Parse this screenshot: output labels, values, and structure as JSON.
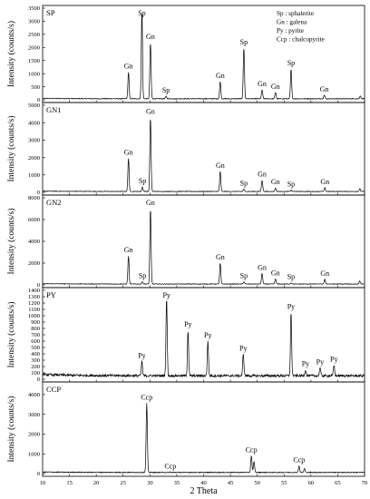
{
  "chart_data": [
    {
      "type": "line",
      "panel": "SP",
      "ylabel": "Intensity (counts/s)",
      "ylim": [
        0,
        3500
      ],
      "yticks": [
        0,
        500,
        1000,
        1500,
        2000,
        2500,
        3000,
        3500
      ],
      "baseline": 40,
      "peaks": [
        {
          "x": 26.0,
          "y": 1050,
          "label": "Gn"
        },
        {
          "x": 28.5,
          "y": 3380,
          "label": "Sp"
        },
        {
          "x": 30.1,
          "y": 2180,
          "label": "Gn"
        },
        {
          "x": 33.0,
          "y": 130,
          "label": "Sp"
        },
        {
          "x": 43.1,
          "y": 700,
          "label": "Gn"
        },
        {
          "x": 47.5,
          "y": 1980,
          "label": "Sp"
        },
        {
          "x": 50.9,
          "y": 380,
          "label": "Gn"
        },
        {
          "x": 53.4,
          "y": 280,
          "label": "Gn"
        },
        {
          "x": 56.3,
          "y": 1170,
          "label": "Sp"
        },
        {
          "x": 62.5,
          "y": 180,
          "label": "Gn"
        },
        {
          "x": 69.2,
          "y": 150,
          "label": ""
        }
      ],
      "legend": [
        "Sp : sphalerite",
        "Gn : galena",
        "Py : pyrite",
        "Ccp : chalcopyrite"
      ]
    },
    {
      "type": "line",
      "panel": "GN1",
      "ylabel": "Intensity (counts/s)",
      "ylim": [
        0,
        5000
      ],
      "yticks": [
        0,
        1000,
        2000,
        3000,
        4000,
        5000
      ],
      "baseline": 50,
      "peaks": [
        {
          "x": 26.0,
          "y": 1950,
          "label": "Gn"
        },
        {
          "x": 28.6,
          "y": 300,
          "label": "Sp"
        },
        {
          "x": 30.1,
          "y": 4300,
          "label": "Gn"
        },
        {
          "x": 43.1,
          "y": 1200,
          "label": "Gn"
        },
        {
          "x": 47.5,
          "y": 180,
          "label": "Sp"
        },
        {
          "x": 50.9,
          "y": 700,
          "label": "Gn"
        },
        {
          "x": 53.4,
          "y": 250,
          "label": "Gn"
        },
        {
          "x": 56.3,
          "y": 120,
          "label": "Sp"
        },
        {
          "x": 62.6,
          "y": 260,
          "label": "Gn"
        },
        {
          "x": 69.1,
          "y": 200,
          "label": ""
        }
      ]
    },
    {
      "type": "line",
      "panel": "GN2",
      "ylabel": "Intensity (counts/s)",
      "ylim": [
        0,
        8000
      ],
      "yticks": [
        0,
        2000,
        4000,
        6000,
        8000
      ],
      "baseline": 80,
      "peaks": [
        {
          "x": 26.0,
          "y": 2650,
          "label": "Gn"
        },
        {
          "x": 28.6,
          "y": 300,
          "label": "Sp"
        },
        {
          "x": 30.1,
          "y": 7000,
          "label": "Gn"
        },
        {
          "x": 43.1,
          "y": 2000,
          "label": "Gn"
        },
        {
          "x": 47.5,
          "y": 300,
          "label": "Sp"
        },
        {
          "x": 50.9,
          "y": 1050,
          "label": "Gn"
        },
        {
          "x": 53.4,
          "y": 550,
          "label": "Gn"
        },
        {
          "x": 56.3,
          "y": 200,
          "label": "Sp"
        },
        {
          "x": 62.6,
          "y": 500,
          "label": "Gn"
        },
        {
          "x": 69.1,
          "y": 350,
          "label": ""
        }
      ]
    },
    {
      "type": "line",
      "panel": "PY",
      "ylabel": "Intensity (counts/s)",
      "ylim": [
        0,
        1400
      ],
      "yticks": [
        0,
        100,
        200,
        300,
        400,
        500,
        600,
        700,
        800,
        900,
        1000,
        1100,
        1200,
        1300,
        1400
      ],
      "baseline": 55,
      "peaks": [
        {
          "x": 28.5,
          "y": 280,
          "label": "Py"
        },
        {
          "x": 33.1,
          "y": 1270,
          "label": "Py"
        },
        {
          "x": 37.1,
          "y": 770,
          "label": "Py"
        },
        {
          "x": 40.8,
          "y": 600,
          "label": "Py"
        },
        {
          "x": 47.4,
          "y": 390,
          "label": "Py"
        },
        {
          "x": 56.3,
          "y": 1050,
          "label": "Py"
        },
        {
          "x": 59.0,
          "y": 150,
          "label": "Py"
        },
        {
          "x": 61.7,
          "y": 180,
          "label": "Py"
        },
        {
          "x": 64.3,
          "y": 220,
          "label": "Py"
        }
      ]
    },
    {
      "type": "line",
      "panel": "CCP",
      "ylabel": "Intensity (counts/s)",
      "xlabel": "2 Theta",
      "xlim": [
        10,
        70
      ],
      "xticks": [
        10,
        15,
        20,
        25,
        30,
        35,
        40,
        45,
        50,
        55,
        60,
        65,
        70
      ],
      "ylim": [
        0,
        4500
      ],
      "yticks": [
        0,
        1000,
        2000,
        3000,
        4000
      ],
      "baseline": 60,
      "peaks": [
        {
          "x": 29.4,
          "y": 3550,
          "label": "Ccp"
        },
        {
          "x": 33.8,
          "y": 80,
          "label": "Ccp"
        },
        {
          "x": 48.9,
          "y": 900,
          "label": "Ccp"
        },
        {
          "x": 49.4,
          "y": 600,
          "label": ""
        },
        {
          "x": 57.8,
          "y": 380,
          "label": "Ccp"
        },
        {
          "x": 58.8,
          "y": 250,
          "label": ""
        }
      ]
    }
  ]
}
